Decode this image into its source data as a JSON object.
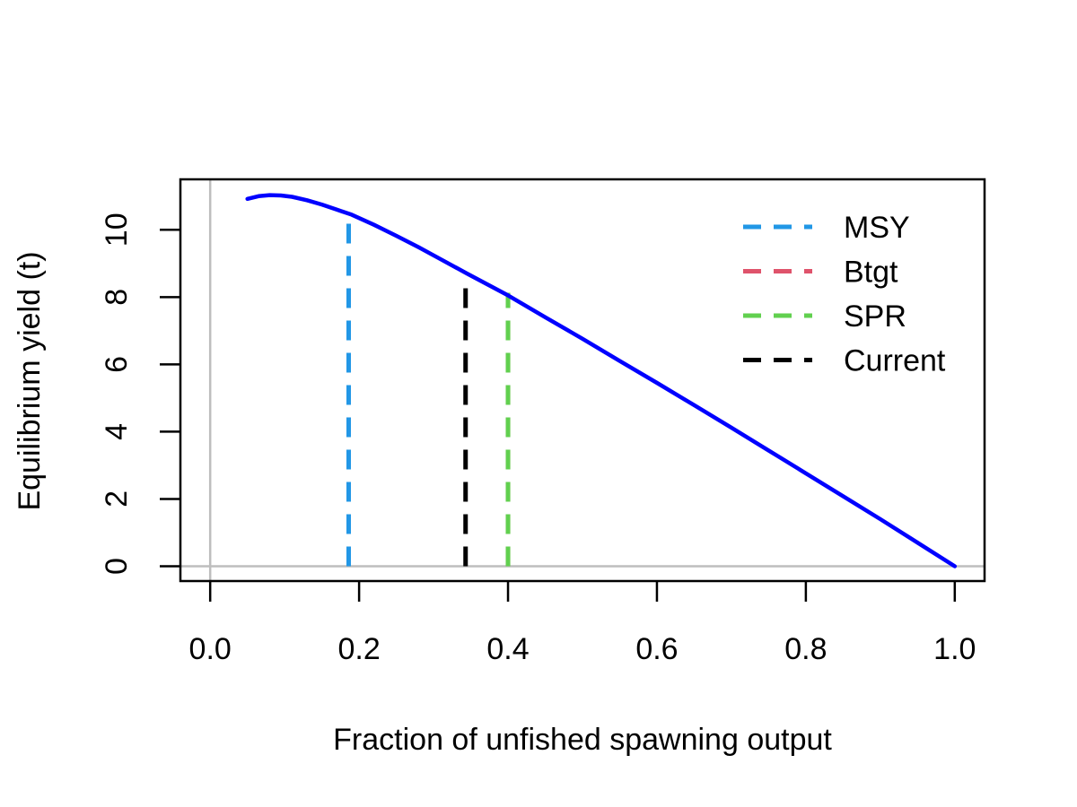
{
  "chart_data": {
    "type": "line",
    "xlabel": "Fraction of unfished spawning output",
    "ylabel": "Equilibrium yield (t)",
    "xlim": [
      -0.04,
      1.04
    ],
    "ylim": [
      -0.44,
      11.5
    ],
    "x_ticks": [
      0.0,
      0.2,
      0.4,
      0.6,
      0.8,
      1.0
    ],
    "x_tick_labels": [
      "0.0",
      "0.2",
      "0.4",
      "0.6",
      "0.8",
      "1.0"
    ],
    "y_ticks": [
      0,
      2,
      4,
      6,
      8,
      10
    ],
    "y_tick_labels": [
      "0",
      "2",
      "4",
      "6",
      "8",
      "10"
    ],
    "reference_lines": {
      "x": 0,
      "y": 0,
      "color": "#BEBEBE"
    },
    "curve": {
      "color": "#0000FF",
      "x": [
        0.05,
        0.065,
        0.08,
        0.095,
        0.11,
        0.13,
        0.15,
        0.17,
        0.19,
        0.22,
        0.25,
        0.28,
        0.31,
        0.345,
        0.4,
        0.45,
        0.5,
        0.55,
        0.6,
        0.65,
        0.7,
        0.75,
        0.8,
        0.85,
        0.9,
        0.95,
        1.0
      ],
      "y": [
        10.92,
        11.0,
        11.03,
        11.02,
        10.98,
        10.88,
        10.75,
        10.6,
        10.45,
        10.15,
        9.82,
        9.48,
        9.12,
        8.7,
        8.05,
        7.4,
        6.76,
        6.1,
        5.45,
        4.79,
        4.12,
        3.44,
        2.76,
        2.08,
        1.4,
        0.7,
        0.0
      ]
    },
    "vertical_markers": [
      {
        "name": "MSY",
        "x": 0.186,
        "y": 10.47,
        "color": "#2297E6"
      },
      {
        "name": "Btgt",
        "x": 0.4,
        "y": 8.13,
        "color": "#DF536B"
      },
      {
        "name": "SPR",
        "x": 0.4,
        "y": 8.13,
        "color": "#61D04F"
      },
      {
        "name": "Current",
        "x": 0.343,
        "y": 8.4,
        "color": "#000000"
      }
    ],
    "legend": {
      "position": "top-right",
      "entries": [
        {
          "label": "MSY",
          "color": "#2297E6"
        },
        {
          "label": "Btgt",
          "color": "#DF536B"
        },
        {
          "label": "SPR",
          "color": "#61D04F"
        },
        {
          "label": "Current",
          "color": "#000000"
        }
      ]
    },
    "grid": false
  }
}
